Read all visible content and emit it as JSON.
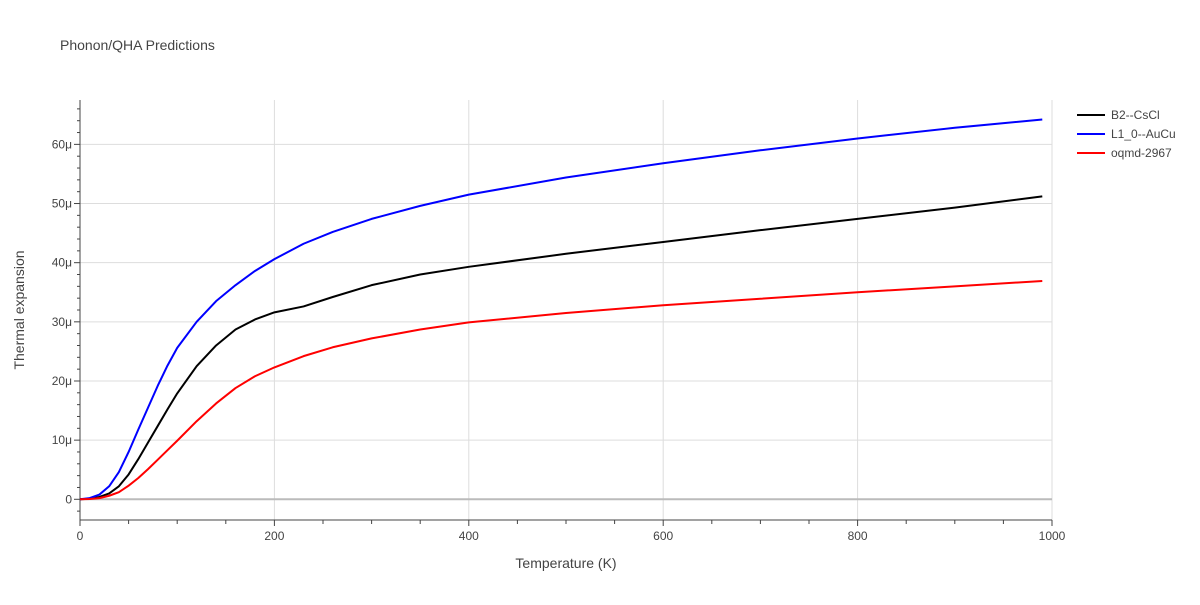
{
  "chart_data": {
    "type": "line",
    "title": "Phonon/QHA Predictions",
    "xlabel": "Temperature (K)",
    "ylabel": "Thermal expansion",
    "xlim": [
      0,
      1000
    ],
    "ylim": [
      -3.5e-06,
      6.75e-05
    ],
    "x_ticks": [
      0,
      200,
      400,
      600,
      800,
      1000
    ],
    "x_tick_labels": [
      "0",
      "200",
      "400",
      "600",
      "800",
      "1000"
    ],
    "y_ticks": [
      0,
      1e-05,
      2e-05,
      3e-05,
      4e-05,
      5e-05,
      6e-05
    ],
    "y_tick_labels": [
      "0",
      "10μ",
      "20μ",
      "30μ",
      "40μ",
      "50μ",
      "60μ"
    ],
    "grid": true,
    "legend_position": "top-right",
    "series": [
      {
        "name": "B2--CsCl",
        "color": "#000000",
        "x": [
          0,
          10,
          20,
          30,
          40,
          50,
          60,
          70,
          80,
          90,
          100,
          120,
          140,
          160,
          180,
          200,
          230,
          260,
          300,
          350,
          400,
          500,
          600,
          700,
          800,
          900,
          990
        ],
        "y": [
          0,
          1e-07,
          4e-07,
          1e-06,
          2.2e-06,
          4.2e-06,
          6.8e-06,
          9.6e-06,
          1.24e-05,
          1.52e-05,
          1.79e-05,
          2.25e-05,
          2.6e-05,
          2.87e-05,
          3.04e-05,
          3.16e-05,
          3.26e-05,
          3.42e-05,
          3.62e-05,
          3.8e-05,
          3.93e-05,
          4.15e-05,
          4.35e-05,
          4.55e-05,
          4.74e-05,
          4.93e-05,
          5.12e-05
        ]
      },
      {
        "name": "L1_0--AuCu",
        "color": "#0000ff",
        "x": [
          0,
          10,
          20,
          30,
          40,
          50,
          60,
          70,
          80,
          90,
          100,
          120,
          140,
          160,
          180,
          200,
          230,
          260,
          300,
          350,
          400,
          500,
          600,
          700,
          800,
          900,
          990
        ],
        "y": [
          0,
          2e-07,
          8e-07,
          2.2e-06,
          4.6e-06,
          8e-06,
          1.18e-05,
          1.55e-05,
          1.92e-05,
          2.26e-05,
          2.56e-05,
          3e-05,
          3.35e-05,
          3.62e-05,
          3.86e-05,
          4.06e-05,
          4.32e-05,
          4.52e-05,
          4.74e-05,
          4.96e-05,
          5.15e-05,
          5.44e-05,
          5.68e-05,
          5.9e-05,
          6.1e-05,
          6.28e-05,
          6.42e-05
        ]
      },
      {
        "name": "oqmd-2967",
        "color": "#ff0000",
        "x": [
          0,
          10,
          20,
          30,
          40,
          50,
          60,
          70,
          80,
          90,
          100,
          120,
          140,
          160,
          180,
          200,
          230,
          260,
          300,
          350,
          400,
          500,
          600,
          700,
          800,
          900,
          990
        ],
        "y": [
          0,
          5e-08,
          2e-07,
          6e-07,
          1.2e-06,
          2.3e-06,
          3.6e-06,
          5.1e-06,
          6.7e-06,
          8.3e-06,
          9.9e-06,
          1.32e-05,
          1.62e-05,
          1.88e-05,
          2.08e-05,
          2.23e-05,
          2.42e-05,
          2.57e-05,
          2.72e-05,
          2.87e-05,
          2.99e-05,
          3.15e-05,
          3.28e-05,
          3.39e-05,
          3.5e-05,
          3.6e-05,
          3.69e-05
        ]
      }
    ]
  }
}
